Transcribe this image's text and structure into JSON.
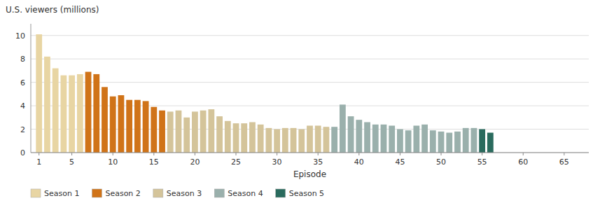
{
  "chart_data": {
    "type": "bar",
    "xlabel": "Episode",
    "ylabel": "U.S. viewers (millions)",
    "x": [
      1,
      2,
      3,
      4,
      5,
      6,
      7,
      8,
      9,
      10,
      11,
      12,
      13,
      14,
      15,
      16,
      17,
      18,
      19,
      20,
      21,
      22,
      23,
      24,
      25,
      26,
      27,
      28,
      29,
      30,
      31,
      32,
      33,
      34,
      35,
      36,
      37,
      38,
      39,
      40,
      41,
      42,
      43,
      44,
      45,
      46,
      47,
      48,
      49,
      50,
      51,
      52,
      53,
      54,
      55,
      56
    ],
    "series": [
      {
        "name": "Season 1",
        "color": "#e8d5a3",
        "values": [
          10.1,
          8.2,
          7.2,
          6.6,
          6.6,
          6.7,
          null,
          null,
          null,
          null,
          null,
          null,
          null,
          null,
          null,
          null,
          null,
          null,
          null,
          null,
          null,
          null,
          null,
          null,
          null,
          null,
          null,
          null,
          null,
          null,
          null,
          null,
          null,
          null,
          null,
          null,
          null,
          null,
          null,
          null,
          null,
          null,
          null,
          null,
          null,
          null,
          null,
          null,
          null,
          null,
          null,
          null,
          null,
          null,
          null,
          null
        ]
      },
      {
        "name": "Season 2",
        "color": "#d07318",
        "values": [
          null,
          null,
          null,
          null,
          null,
          null,
          6.9,
          6.7,
          5.6,
          4.8,
          4.9,
          4.5,
          4.5,
          4.4,
          3.9,
          3.6,
          null,
          null,
          null,
          null,
          null,
          null,
          null,
          null,
          null,
          null,
          null,
          null,
          null,
          null,
          null,
          null,
          null,
          null,
          null,
          null,
          null,
          null,
          null,
          null,
          null,
          null,
          null,
          null,
          null,
          null,
          null,
          null,
          null,
          null,
          null,
          null,
          null,
          null,
          null,
          null
        ]
      },
      {
        "name": "Season 3",
        "color": "#d4c49a",
        "values": [
          null,
          null,
          null,
          null,
          null,
          null,
          null,
          null,
          null,
          null,
          null,
          null,
          null,
          null,
          null,
          null,
          3.5,
          3.6,
          3.0,
          3.5,
          3.6,
          3.7,
          3.1,
          2.7,
          2.5,
          2.5,
          2.6,
          2.4,
          2.1,
          2.0,
          2.1,
          2.1,
          2.0,
          2.3,
          2.3,
          2.2,
          null,
          null,
          null,
          null,
          null,
          null,
          null,
          null,
          null,
          null,
          null,
          null,
          null,
          null,
          null,
          null,
          null,
          null,
          null,
          null
        ]
      },
      {
        "name": "Season 4",
        "color": "#9ab0ac",
        "values": [
          null,
          null,
          null,
          null,
          null,
          null,
          null,
          null,
          null,
          null,
          null,
          null,
          null,
          null,
          null,
          null,
          null,
          null,
          null,
          null,
          null,
          null,
          null,
          null,
          null,
          null,
          null,
          null,
          null,
          null,
          null,
          null,
          null,
          null,
          null,
          null,
          2.2,
          4.1,
          3.1,
          2.8,
          2.6,
          2.4,
          2.4,
          2.3,
          2.0,
          1.9,
          2.3,
          2.4,
          1.9,
          1.8,
          1.7,
          1.8,
          2.1,
          2.1,
          null,
          null
        ]
      },
      {
        "name": "Season 5",
        "color": "#2a6b5e",
        "values": [
          null,
          null,
          null,
          null,
          null,
          null,
          null,
          null,
          null,
          null,
          null,
          null,
          null,
          null,
          null,
          null,
          null,
          null,
          null,
          null,
          null,
          null,
          null,
          null,
          null,
          null,
          null,
          null,
          null,
          null,
          null,
          null,
          null,
          null,
          null,
          null,
          null,
          null,
          null,
          null,
          null,
          null,
          null,
          null,
          null,
          null,
          null,
          null,
          null,
          null,
          null,
          null,
          null,
          null,
          2.0,
          1.7
        ]
      }
    ],
    "xlim": [
      0,
      68
    ],
    "xticks": [
      1,
      5,
      10,
      15,
      20,
      25,
      30,
      35,
      40,
      45,
      50,
      55,
      60,
      65
    ],
    "ylim": [
      0,
      11
    ],
    "yticks": [
      0,
      2,
      4,
      6,
      8,
      10
    ],
    "grid": true,
    "legend": "bottom"
  }
}
